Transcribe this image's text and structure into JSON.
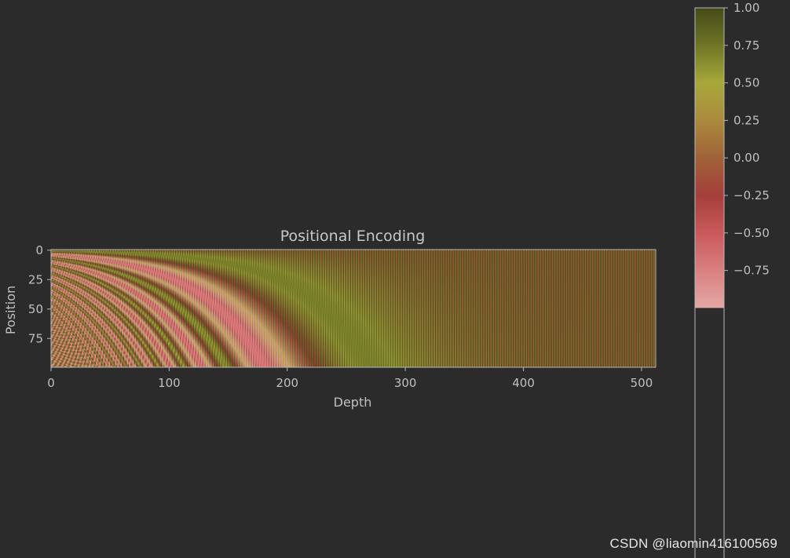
{
  "chart_data": {
    "type": "heatmap",
    "title": "Positional Encoding",
    "xlabel": "Depth",
    "ylabel": "Position",
    "xlim": [
      0,
      512
    ],
    "ylim": [
      0,
      100
    ],
    "n_positions": 100,
    "d_model": 512,
    "function": "sinusoidal positional encoding",
    "x_ticks": [
      0,
      100,
      200,
      300,
      400,
      500
    ],
    "y_ticks": [
      0,
      25,
      50,
      75
    ],
    "colorbar": {
      "range": [
        -1.0,
        1.0
      ],
      "ticks": [
        "1.00",
        "0.75",
        "0.50",
        "0.25",
        "0.00",
        "−0.25",
        "−0.50",
        "−0.75"
      ],
      "colormap": [
        {
          "value": 1.0,
          "color": "#454a1a"
        },
        {
          "value": 0.75,
          "color": "#6e7525"
        },
        {
          "value": 0.5,
          "color": "#a8a83a"
        },
        {
          "value": 0.25,
          "color": "#ab8a3e"
        },
        {
          "value": 0.0,
          "color": "#a06238"
        },
        {
          "value": -0.25,
          "color": "#a53f3b"
        },
        {
          "value": -0.5,
          "color": "#c9595b"
        },
        {
          "value": -0.75,
          "color": "#d98080"
        },
        {
          "value": -1.0,
          "color": "#e3a8a4"
        }
      ]
    },
    "grid": false
  },
  "watermark": "CSDN @liaomin416100569",
  "colors": {
    "background": "#2b2b2b",
    "frame": "#b8b8b8",
    "text": "#c0c0c0"
  }
}
